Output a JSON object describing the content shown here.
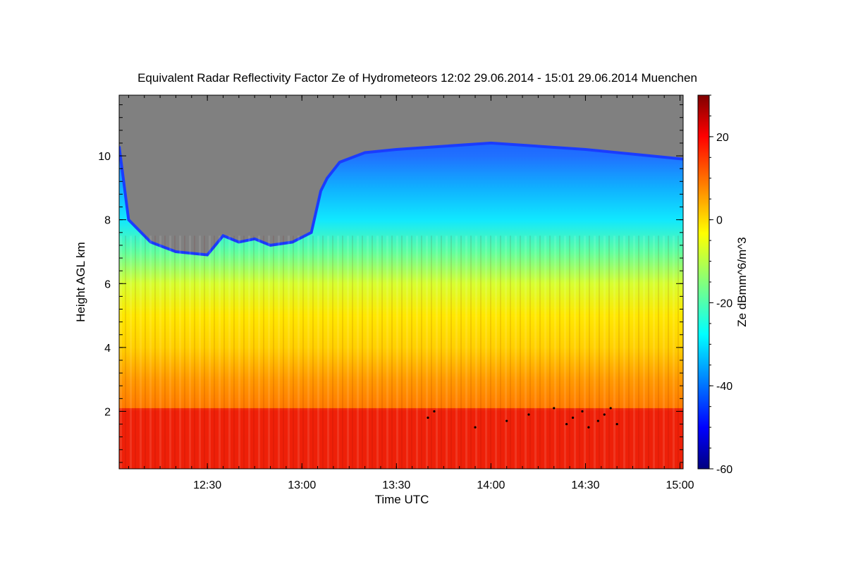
{
  "chart_data": {
    "type": "heatmap",
    "title": "Equivalent Radar Reflectivity Factor Ze of Hydrometeors   12:02 29.06.2014 - 15:01 29.06.2014 Muenchen",
    "xlabel": "Time UTC",
    "ylabel": "Height AGL km",
    "colorbar_label": "Ze dBmm^6/m^3",
    "x_range": [
      "12:02",
      "15:01"
    ],
    "x_ticks": [
      "12:30",
      "13:00",
      "13:30",
      "14:00",
      "14:30",
      "15:00"
    ],
    "y_range": [
      0.2,
      11.9
    ],
    "y_ticks": [
      2,
      4,
      6,
      8,
      10
    ],
    "z_range": [
      -60,
      30
    ],
    "colorbar_ticks": [
      -60,
      -40,
      -20,
      0,
      20
    ],
    "colormap": "jet",
    "no_signal_color": "#808080",
    "clutter_color": "#000000",
    "echo_top_profile_km": [
      {
        "t": "12:02",
        "h": 10.3
      },
      {
        "t": "12:05",
        "h": 8.0
      },
      {
        "t": "12:12",
        "h": 7.3
      },
      {
        "t": "12:20",
        "h": 7.0
      },
      {
        "t": "12:30",
        "h": 6.9
      },
      {
        "t": "12:35",
        "h": 7.5
      },
      {
        "t": "12:40",
        "h": 7.3
      },
      {
        "t": "12:45",
        "h": 7.4
      },
      {
        "t": "12:50",
        "h": 7.2
      },
      {
        "t": "12:57",
        "h": 7.3
      },
      {
        "t": "13:03",
        "h": 7.6
      },
      {
        "t": "13:06",
        "h": 8.9
      },
      {
        "t": "13:08",
        "h": 9.3
      },
      {
        "t": "13:12",
        "h": 9.8
      },
      {
        "t": "13:20",
        "h": 10.1
      },
      {
        "t": "13:30",
        "h": 10.2
      },
      {
        "t": "14:00",
        "h": 10.4
      },
      {
        "t": "14:30",
        "h": 10.2
      },
      {
        "t": "15:01",
        "h": 9.9
      }
    ],
    "melting_layer_km": 2.1,
    "rain_layer_ze_dbz": 26
  }
}
